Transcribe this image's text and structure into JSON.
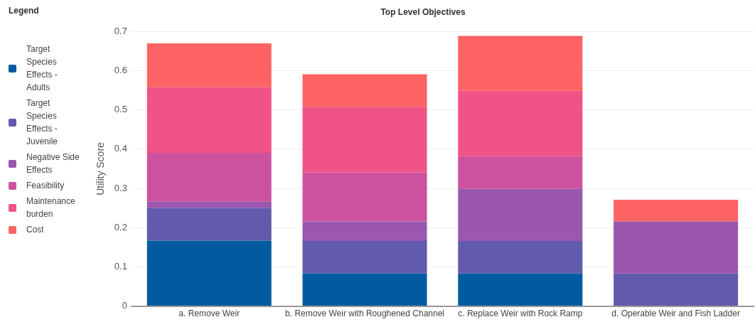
{
  "chart_data": {
    "type": "bar",
    "title": "Top Level Objectives",
    "ylabel": "Utility Score",
    "legend_title": "Legend",
    "legend": "left",
    "stacked": true,
    "grid": "y",
    "categories": [
      "a. Remove Weir",
      "b. Remove Weir with Roughened Channel",
      "c. Replace Weir with Rock Ramp",
      "d. Operable Weir and Fish Ladder"
    ],
    "ylim": [
      0,
      0.7
    ],
    "yticks": [
      0,
      0.1,
      0.2,
      0.3,
      0.4,
      0.5,
      0.6,
      0.7
    ],
    "series": [
      {
        "name": "Target Species Effects - Adults",
        "color": "#015ba0",
        "values": [
          0.167,
          0.083,
          0.083,
          0
        ]
      },
      {
        "name": "Target Species Effects - Juvenile",
        "color": "#625bad",
        "values": [
          0.083,
          0.083,
          0.083,
          0.083
        ]
      },
      {
        "name": "Negative Side Effects",
        "color": "#9b57ae",
        "values": [
          0.016,
          0.05,
          0.133,
          0.133
        ]
      },
      {
        "name": "Feasibility",
        "color": "#cc52a0",
        "values": [
          0.125,
          0.125,
          0.083,
          0
        ]
      },
      {
        "name": "Maintenance burden",
        "color": "#f05385",
        "values": [
          0.167,
          0.167,
          0.167,
          0
        ]
      },
      {
        "name": "Cost",
        "color": "#fd6363",
        "values": [
          0.112,
          0.083,
          0.14,
          0.055
        ]
      }
    ]
  }
}
